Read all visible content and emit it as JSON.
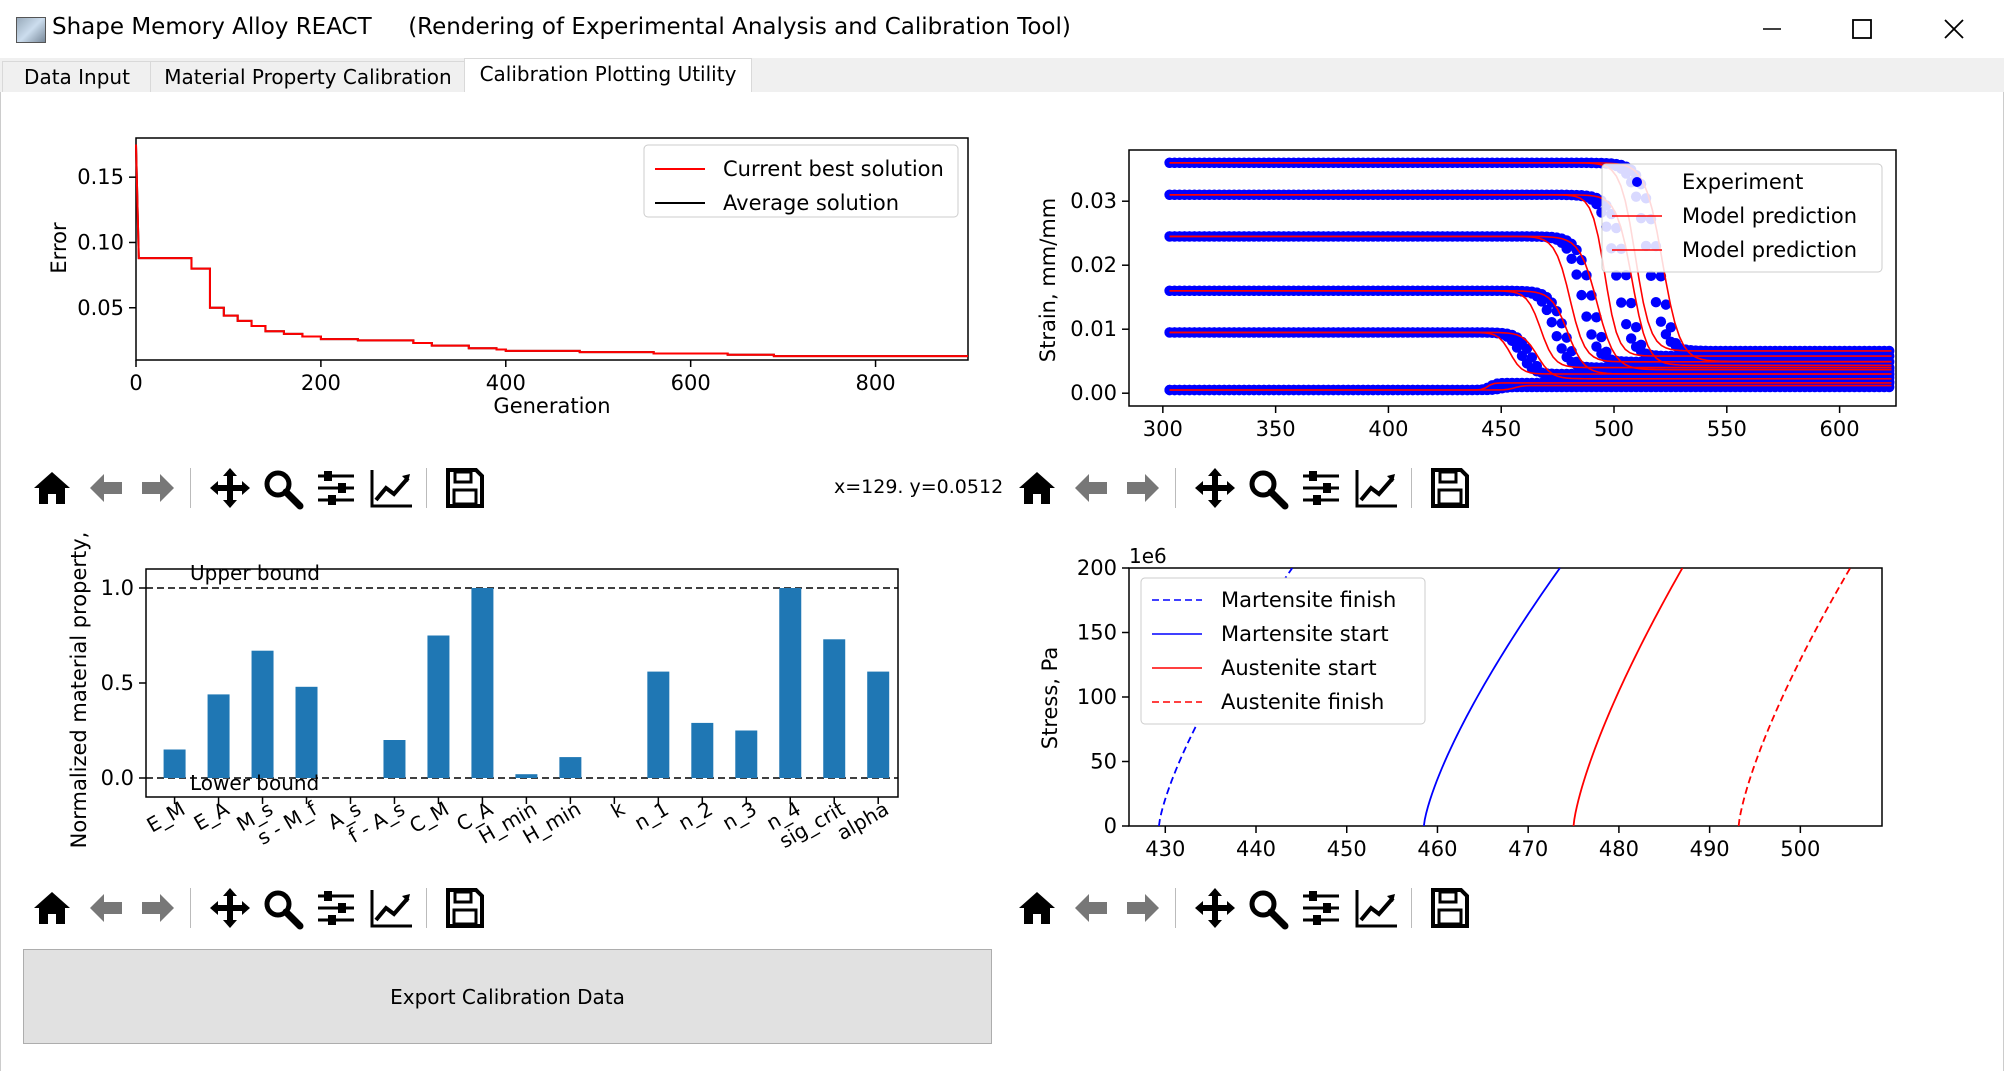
{
  "window": {
    "title": "Shape Memory Alloy REACT     (Rendering of Experimental Analysis and Calibration Tool)",
    "minimize_icon": "minimize-icon",
    "maximize_icon": "maximize-icon",
    "close_icon": "close-icon"
  },
  "tabs": [
    {
      "label": "Data Input",
      "active": false
    },
    {
      "label": "Material Property Calibration",
      "active": false
    },
    {
      "label": "Calibration Plotting Utility",
      "active": true
    }
  ],
  "toolbar_icons": [
    "home-icon",
    "back-arrow-icon",
    "forward-arrow-icon",
    "pan-icon",
    "zoom-icon",
    "configure-subplots-icon",
    "edit-axis-icon",
    "save-icon"
  ],
  "coords_readout": "x=129. y=0.0512",
  "export_button": "Export Calibration Data",
  "chart_data": [
    {
      "type": "line",
      "ylabel": "Error",
      "xlabel": "Generation",
      "xlim": [
        0,
        900
      ],
      "ylim": [
        0.01,
        0.18
      ],
      "xticks": [
        "0",
        "200",
        "400",
        "600",
        "800"
      ],
      "yticks": [
        "0.05",
        "0.10",
        "0.15"
      ],
      "legend_placement": "top-right",
      "colors": {
        "best": "#ff0000",
        "average": "#000000"
      },
      "series": [
        {
          "name": "Current best solution",
          "x": [
            0,
            3,
            60,
            60,
            80,
            80,
            95,
            95,
            110,
            110,
            125,
            125,
            140,
            140,
            160,
            160,
            180,
            180,
            200,
            200,
            240,
            240,
            300,
            300,
            320,
            320,
            360,
            360,
            390,
            390,
            400,
            400,
            480,
            480,
            560,
            560,
            640,
            640,
            690,
            690,
            900
          ],
          "y": [
            0.175,
            0.088,
            0.088,
            0.08,
            0.08,
            0.05,
            0.05,
            0.044,
            0.044,
            0.04,
            0.04,
            0.036,
            0.036,
            0.032,
            0.032,
            0.03,
            0.03,
            0.028,
            0.028,
            0.026,
            0.026,
            0.025,
            0.025,
            0.023,
            0.023,
            0.021,
            0.021,
            0.019,
            0.019,
            0.018,
            0.018,
            0.017,
            0.017,
            0.016,
            0.016,
            0.015,
            0.015,
            0.014,
            0.014,
            0.013,
            0.013
          ]
        },
        {
          "name": "Average solution",
          "x": [
            0,
            3,
            60,
            60,
            80,
            80,
            95,
            95,
            110,
            110,
            125,
            125,
            140,
            140,
            160,
            160,
            180,
            180,
            200,
            200,
            240,
            240,
            300,
            300,
            320,
            320,
            360,
            360,
            390,
            390,
            400,
            400,
            480,
            480,
            560,
            560,
            640,
            640,
            690,
            690,
            900
          ],
          "y": [
            0.175,
            0.088,
            0.088,
            0.08,
            0.08,
            0.05,
            0.05,
            0.044,
            0.044,
            0.04,
            0.04,
            0.036,
            0.036,
            0.032,
            0.032,
            0.03,
            0.03,
            0.028,
            0.028,
            0.026,
            0.026,
            0.025,
            0.025,
            0.023,
            0.023,
            0.021,
            0.021,
            0.019,
            0.019,
            0.018,
            0.018,
            0.017,
            0.017,
            0.016,
            0.016,
            0.015,
            0.015,
            0.014,
            0.014,
            0.013,
            0.013
          ]
        }
      ]
    },
    {
      "type": "scatter",
      "ylabel": "Strain, mm/mm",
      "xlim": [
        285,
        625
      ],
      "ylim": [
        -0.002,
        0.038
      ],
      "xticks": [
        "300",
        "350",
        "400",
        "450",
        "500",
        "550",
        "600"
      ],
      "yticks": [
        "0.00",
        "0.01",
        "0.02",
        "0.03"
      ],
      "legend_placement": "top-right",
      "colors": {
        "experiment": "#0000ff",
        "model": "#ff0000"
      },
      "legend": [
        "Experiment",
        "Model prediction",
        "Model prediction"
      ],
      "curves": [
        {
          "level": 0.036,
          "t_high": 527,
          "t_low": 503,
          "end": 0.0066,
          "model_t_high": 521,
          "model_t_low": 498
        },
        {
          "level": 0.031,
          "t_high": 512,
          "t_low": 490,
          "end": 0.0058,
          "model_t_high": 506,
          "model_t_low": 486
        },
        {
          "level": 0.0245,
          "t_high": 497,
          "t_low": 475,
          "end": 0.0049,
          "model_t_high": 492,
          "model_t_low": 469
        },
        {
          "level": 0.016,
          "t_high": 484,
          "t_low": 463,
          "end": 0.004,
          "model_t_high": 478,
          "model_t_low": 457
        },
        {
          "level": 0.0095,
          "t_high": 468,
          "t_low": 449,
          "end": 0.003,
          "model_t_high": 463,
          "model_t_low": 445
        },
        {
          "level": 0.0005,
          "t_high": 450,
          "t_low": 440,
          "end": 0.0016,
          "model_t_high": 448,
          "model_t_low": 440
        }
      ]
    },
    {
      "type": "bar",
      "ylabel": "Normalized material property,",
      "categories": [
        "E_M",
        "E_A",
        "M_s",
        "s - M_f",
        "A_s",
        "f - A_s",
        "C_M",
        "C_A",
        "H_min",
        "H_min",
        "k",
        "n_1",
        "n_2",
        "n_3",
        "n_4",
        "sig_crit",
        "alpha"
      ],
      "values": [
        0.15,
        0.44,
        0.67,
        0.48,
        0.0,
        0.2,
        0.75,
        1.0,
        0.02,
        0.11,
        0.0,
        0.56,
        0.29,
        0.25,
        1.0,
        0.73,
        0.56
      ],
      "ylim": [
        -0.1,
        1.1
      ],
      "yticks": [
        "0.0",
        "0.5",
        "1.0"
      ],
      "annotations": [
        "Upper bound",
        "Lower bound"
      ],
      "bar_color": "#1f77b4"
    },
    {
      "type": "line",
      "ylabel": "Stress, Pa",
      "offset_label": "1e6",
      "xlim": [
        426,
        509
      ],
      "ylim": [
        0,
        200
      ],
      "xticks": [
        "430",
        "440",
        "450",
        "460",
        "470",
        "480",
        "490",
        "500"
      ],
      "yticks": [
        "0",
        "50",
        "100",
        "150",
        "200"
      ],
      "legend_placement": "top-left",
      "series": [
        {
          "name": "Martensite finish",
          "color": "#0000ff",
          "dash": true,
          "x0": 429.3,
          "x1": 444.0
        },
        {
          "name": "Martensite start",
          "color": "#0000ff",
          "dash": false,
          "x0": 458.5,
          "x1": 473.5
        },
        {
          "name": "Austenite start",
          "color": "#ff0000",
          "dash": false,
          "x0": 475.0,
          "x1": 487.0
        },
        {
          "name": "Austenite finish",
          "color": "#ff0000",
          "dash": true,
          "x0": 493.2,
          "x1": 505.5
        }
      ]
    }
  ]
}
